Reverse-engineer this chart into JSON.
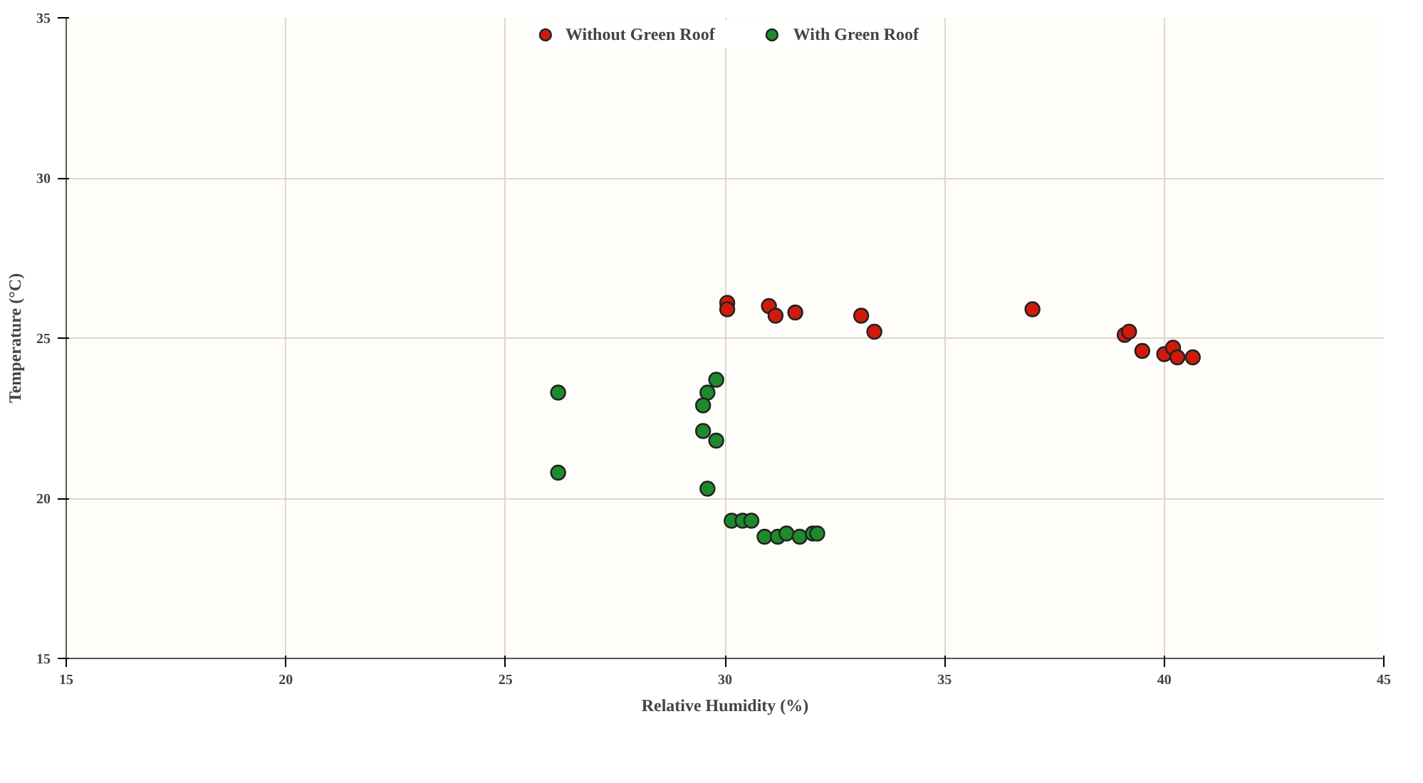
{
  "chart_data": {
    "type": "scatter",
    "xlabel": "Relative Humidity (%)",
    "ylabel": "Temperature (°C)",
    "xlim": [
      15,
      45
    ],
    "ylim": [
      15,
      35
    ],
    "xticks": [
      15,
      20,
      25,
      30,
      35,
      40,
      45
    ],
    "yticks": [
      15,
      20,
      25,
      30,
      35
    ],
    "grid": true,
    "legend": "top",
    "marker": "circle",
    "series": [
      {
        "name": "Without Green Roof",
        "color": "#d01a0c",
        "x": [
          30.05,
          30.05,
          31.0,
          31.15,
          31.6,
          33.1,
          33.4,
          37.0,
          39.1,
          39.2,
          39.5,
          40.0,
          40.2,
          40.3,
          40.65
        ],
        "values": [
          26.1,
          25.9,
          26.0,
          25.7,
          25.8,
          25.7,
          25.2,
          25.9,
          25.1,
          25.2,
          24.6,
          24.5,
          24.7,
          24.4,
          24.4
        ]
      },
      {
        "name": "With Green Roof",
        "color": "#1e8a2c",
        "x": [
          26.2,
          26.2,
          29.8,
          29.6,
          29.5,
          29.5,
          29.8,
          29.6,
          30.15,
          30.4,
          30.6,
          30.9,
          31.2,
          31.4,
          31.7,
          32.0,
          32.1
        ],
        "values": [
          23.3,
          20.8,
          23.7,
          23.3,
          22.9,
          22.1,
          21.8,
          20.3,
          19.3,
          19.3,
          19.3,
          18.8,
          18.8,
          18.9,
          18.8,
          18.9,
          18.9
        ]
      }
    ]
  }
}
